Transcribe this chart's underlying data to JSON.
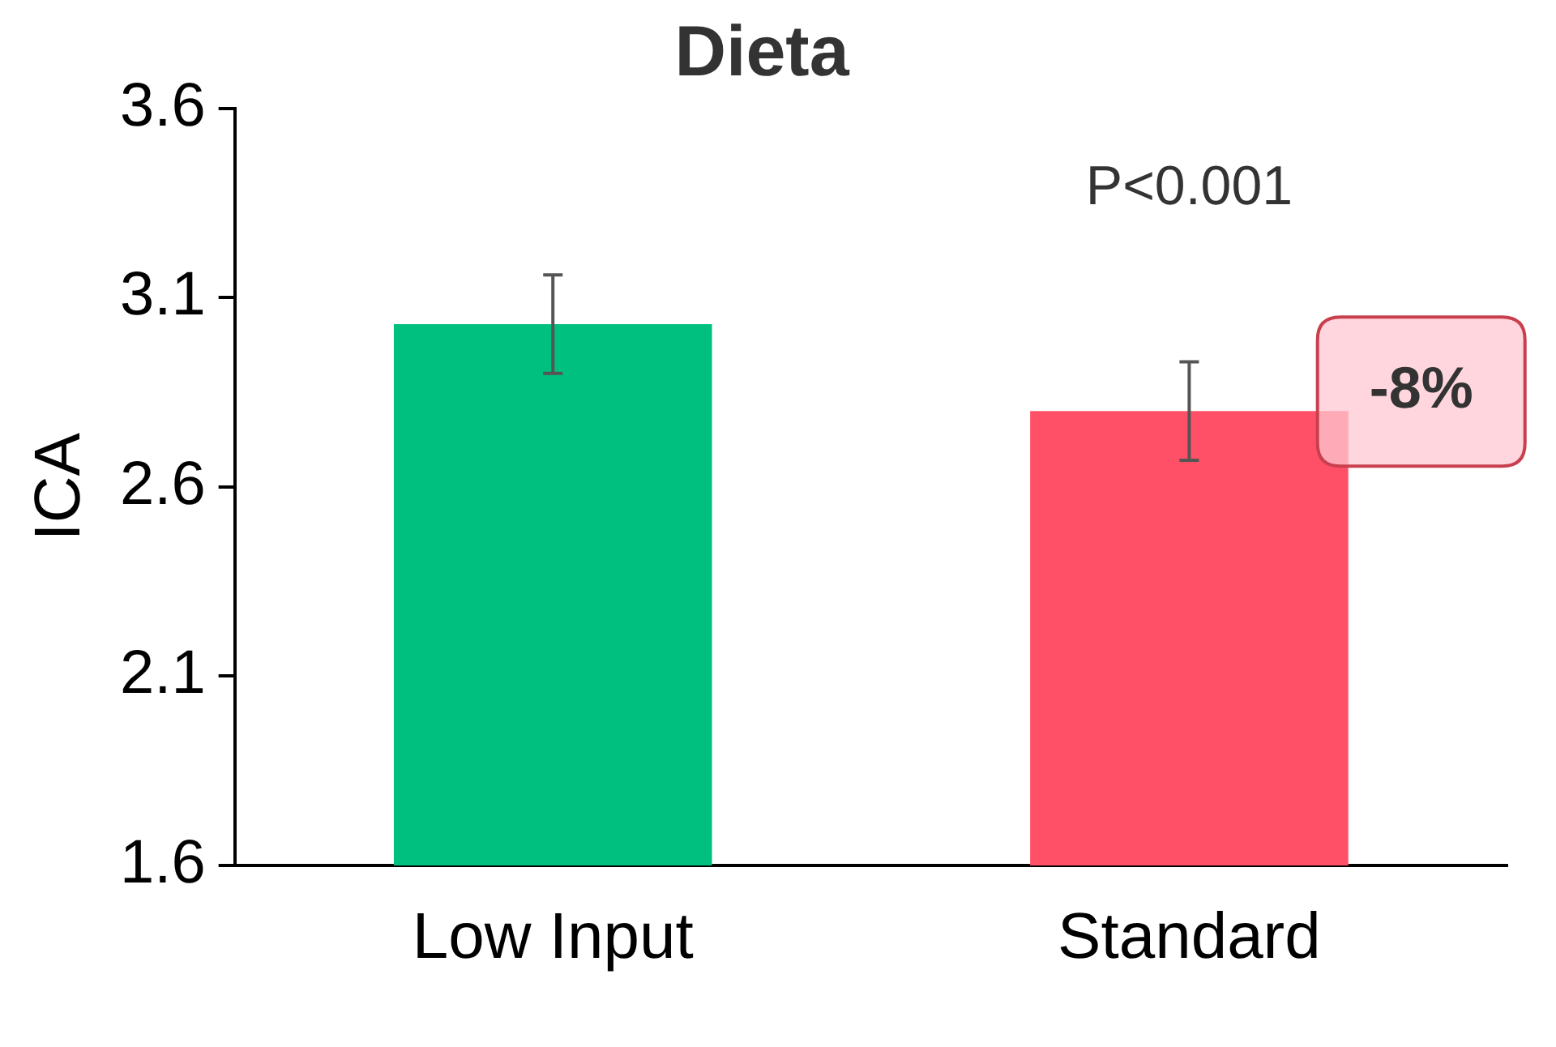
{
  "chart_data": {
    "type": "bar",
    "title": "Dieta",
    "ylabel": "ICA",
    "categories": [
      "Low Input",
      "Standard"
    ],
    "values": [
      3.03,
      2.8
    ],
    "colors": [
      "#00c080",
      "#ff5068"
    ],
    "errors": [
      0.13,
      0.13
    ],
    "ylim": [
      1.6,
      3.6
    ],
    "yticks": [
      {
        "value": 1.6,
        "label": "1.6"
      },
      {
        "value": 2.1,
        "label": "2.1"
      },
      {
        "value": 2.6,
        "label": "2.6"
      },
      {
        "value": 3.1,
        "label": "3.1"
      },
      {
        "value": 3.6,
        "label": "3.6"
      }
    ],
    "grid": false,
    "legend": false,
    "annotations": [
      "P<0.001",
      "-8%"
    ]
  }
}
